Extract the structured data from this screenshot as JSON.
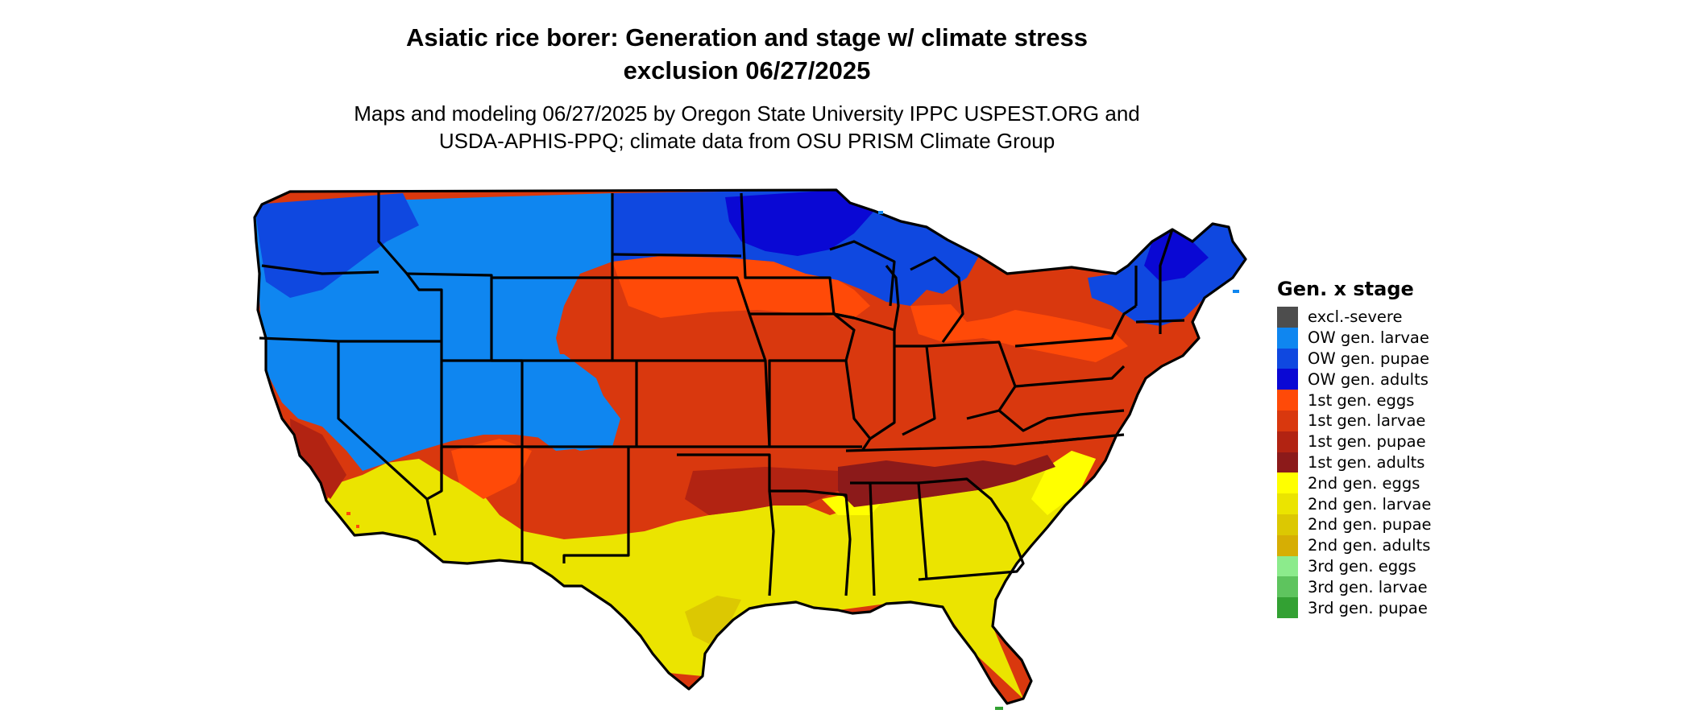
{
  "header": {
    "title_line1": "Asiatic rice borer: Generation and stage w/ climate stress",
    "title_line2": "exclusion 06/27/2025",
    "subtitle_line1": "Maps and modeling 06/27/2025 by Oregon State University IPPC USPEST.ORG and",
    "subtitle_line2": "USDA-APHIS-PPQ; climate data from OSU PRISM Climate Group"
  },
  "map": {
    "region": "Contiguous United States",
    "variable": "Generation x stage",
    "border_color": "#000000",
    "palette": {
      "ow_larvae": "#0f86f0",
      "ow_pupae": "#0f48e0",
      "ow_adults": "#0a08d4",
      "g1_eggs": "#ff4a08",
      "g1_larvae": "#d9380e",
      "g1_pupae": "#b22312",
      "g1_adults": "#8c1a1a",
      "g2_eggs": "#ffff00",
      "g2_larvae": "#ebe400",
      "g2_pupae": "#dcc802",
      "g2_adults": "#d6ae04",
      "g3_eggs": "#8ceb8c",
      "g3_larvae": "#5ec45e",
      "g3_pupae": "#33a133"
    }
  },
  "legend": {
    "title": "Gen. x stage",
    "items": [
      {
        "label": "excl.-severe",
        "color": "#4d4d4d"
      },
      {
        "label": "OW gen. larvae",
        "color": "#0f86f0"
      },
      {
        "label": "OW gen. pupae",
        "color": "#0f48e0"
      },
      {
        "label": "OW gen. adults",
        "color": "#0a08d4"
      },
      {
        "label": "1st gen. eggs",
        "color": "#ff4a08"
      },
      {
        "label": "1st gen. larvae",
        "color": "#d9380e"
      },
      {
        "label": "1st gen. pupae",
        "color": "#b22312"
      },
      {
        "label": "1st gen. adults",
        "color": "#8c1a1a"
      },
      {
        "label": "2nd gen. eggs",
        "color": "#ffff00"
      },
      {
        "label": "2nd gen. larvae",
        "color": "#ebe400"
      },
      {
        "label": "2nd gen. pupae",
        "color": "#dcc802"
      },
      {
        "label": "2nd gen. adults",
        "color": "#d6ae04"
      },
      {
        "label": "3rd gen. eggs",
        "color": "#8ceb8c"
      },
      {
        "label": "3rd gen. larvae",
        "color": "#5ec45e"
      },
      {
        "label": "3rd gen. pupae",
        "color": "#33a133"
      }
    ]
  }
}
